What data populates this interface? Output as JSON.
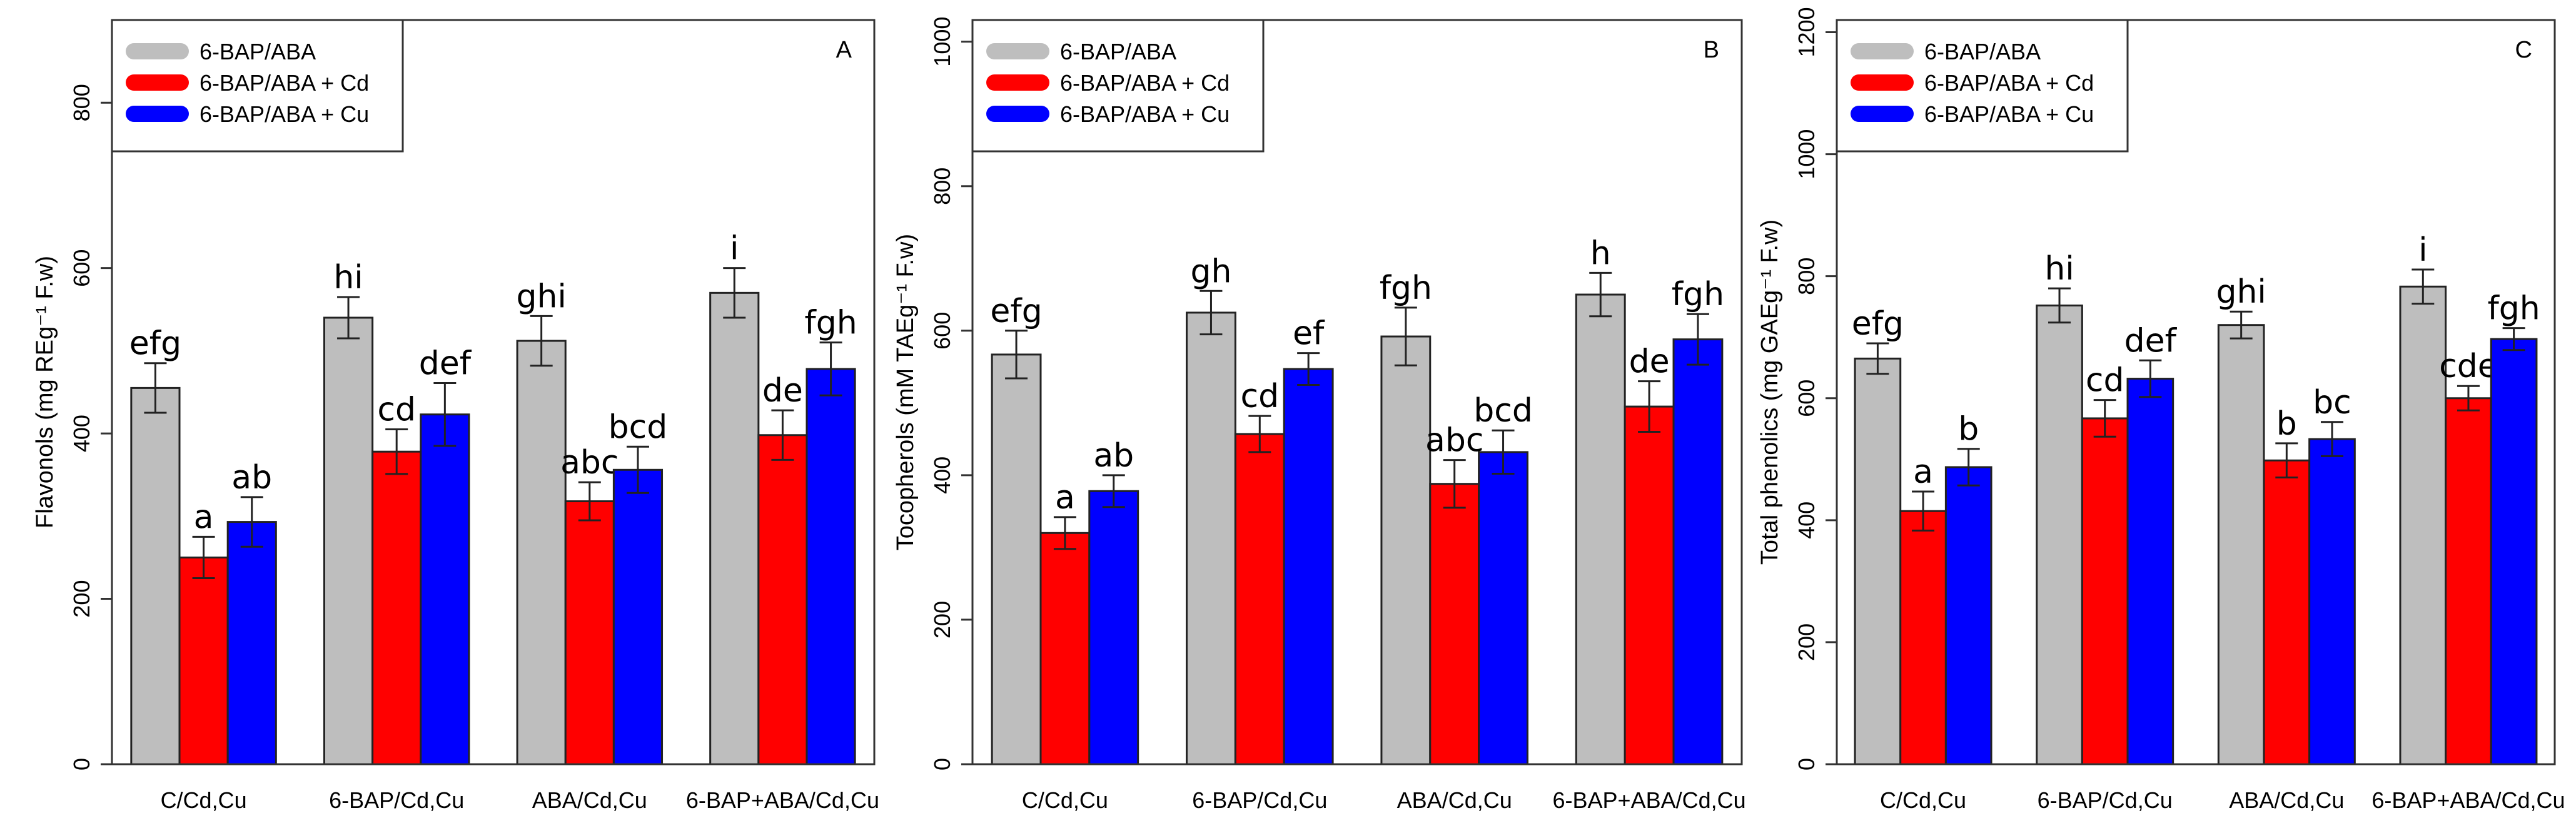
{
  "chart_data": [
    {
      "type": "bar",
      "panel_label": "A",
      "ylabel": "Flavonols (mg REg⁻¹ F.w)",
      "ylim": [
        0,
        900
      ],
      "yticks": [
        0,
        200,
        400,
        600,
        800
      ],
      "categories": [
        "C/Cd,Cu",
        "6-BAP/Cd,Cu",
        "ABA/Cd,Cu",
        "6-BAP+ABA/Cd,Cu"
      ],
      "series": [
        {
          "name": "6-BAP/ABA",
          "color": "#bebebe",
          "values": [
            455,
            540,
            512,
            570
          ],
          "errors": [
            30,
            25,
            30,
            30
          ],
          "letters": [
            "efg",
            "hi",
            "ghi",
            "i"
          ]
        },
        {
          "name": "6-BAP/ABA + Cd",
          "color": "#ff0000",
          "values": [
            250,
            378,
            318,
            398
          ],
          "errors": [
            25,
            27,
            23,
            30
          ],
          "letters": [
            "a",
            "cd",
            "abc",
            "de"
          ]
        },
        {
          "name": "6-BAP/ABA + Cu",
          "color": "#0000ff",
          "values": [
            293,
            423,
            356,
            478
          ],
          "errors": [
            30,
            38,
            28,
            32
          ],
          "letters": [
            "ab",
            "def",
            "bcd",
            "fgh"
          ]
        }
      ],
      "legend_position": "top-left"
    },
    {
      "type": "bar",
      "panel_label": "B",
      "ylabel": "Tocopherols (mM TAEg⁻¹ F.w)",
      "ylim": [
        0,
        1030
      ],
      "yticks": [
        0,
        200,
        400,
        600,
        800,
        1000
      ],
      "categories": [
        "C/Cd,Cu",
        "6-BAP/Cd,Cu",
        "ABA/Cd,Cu",
        "6-BAP+ABA/Cd,Cu"
      ],
      "series": [
        {
          "name": "6-BAP/ABA",
          "color": "#bebebe",
          "values": [
            567,
            625,
            592,
            650
          ],
          "errors": [
            33,
            30,
            40,
            30
          ],
          "letters": [
            "efg",
            "gh",
            "fgh",
            "h"
          ]
        },
        {
          "name": "6-BAP/ABA + Cd",
          "color": "#ff0000",
          "values": [
            320,
            457,
            388,
            495
          ],
          "errors": [
            22,
            25,
            33,
            35
          ],
          "letters": [
            "a",
            "cd",
            "abc",
            "de"
          ]
        },
        {
          "name": "6-BAP/ABA + Cu",
          "color": "#0000ff",
          "values": [
            378,
            547,
            432,
            588
          ],
          "errors": [
            22,
            22,
            30,
            35
          ],
          "letters": [
            "ab",
            "ef",
            "bcd",
            "fgh"
          ]
        }
      ],
      "legend_position": "top-left"
    },
    {
      "type": "bar",
      "panel_label": "C",
      "ylabel": "Total phenolics (mg GAEg⁻¹ F.w)",
      "ylim": [
        0,
        1220
      ],
      "yticks": [
        0,
        200,
        400,
        600,
        800,
        1000,
        1200
      ],
      "categories": [
        "C/Cd,Cu",
        "6-BAP/Cd,Cu",
        "ABA/Cd,Cu",
        "6-BAP+ABA/Cd,Cu"
      ],
      "series": [
        {
          "name": "6-BAP/ABA",
          "color": "#bebebe",
          "values": [
            665,
            752,
            720,
            783
          ],
          "errors": [
            25,
            28,
            22,
            28
          ],
          "letters": [
            "efg",
            "hi",
            "ghi",
            "i"
          ]
        },
        {
          "name": "6-BAP/ABA + Cd",
          "color": "#ff0000",
          "values": [
            415,
            567,
            498,
            600
          ],
          "errors": [
            32,
            30,
            28,
            20
          ],
          "letters": [
            "a",
            "cd",
            "b",
            "cde"
          ]
        },
        {
          "name": "6-BAP/ABA + Cu",
          "color": "#0000ff",
          "values": [
            487,
            632,
            533,
            697
          ],
          "errors": [
            30,
            30,
            28,
            18
          ],
          "letters": [
            "b",
            "def",
            "bc",
            "fgh"
          ]
        }
      ],
      "legend_position": "top-left"
    }
  ]
}
